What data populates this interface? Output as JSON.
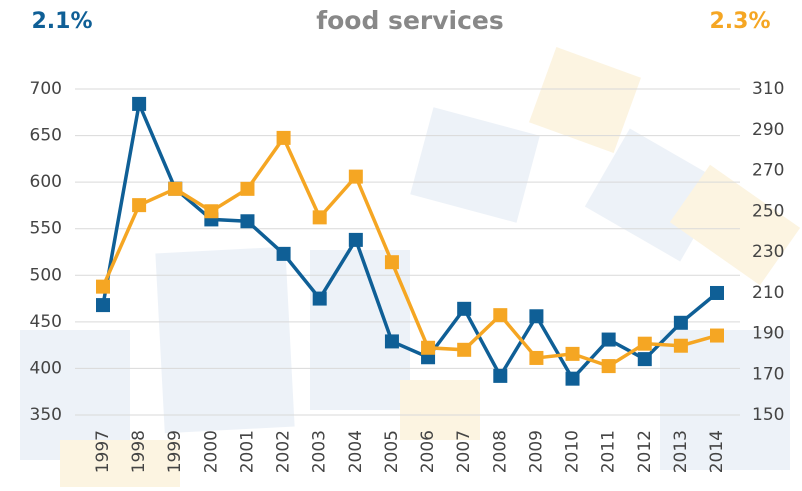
{
  "chart_data": {
    "type": "line",
    "title": "food services",
    "left_annotation": "2.1%",
    "right_annotation": "2.3%",
    "categories": [
      "1997",
      "1998",
      "1999",
      "2000",
      "2001",
      "2002",
      "2003",
      "2004",
      "2005",
      "2006",
      "2007",
      "2008",
      "2009",
      "2010",
      "2011",
      "2012",
      "2013",
      "2014"
    ],
    "series": [
      {
        "color": "#0f5f96",
        "values": [
          468,
          684,
          593,
          560,
          558,
          523,
          475,
          538,
          429,
          412,
          464,
          392,
          456,
          389,
          431,
          410,
          449,
          481
        ]
      },
      {
        "color": "#f5a623",
        "axis": "y2",
        "values": [
          213,
          253,
          261,
          250,
          261,
          286,
          247,
          267,
          225,
          183,
          182,
          199,
          178,
          180,
          174,
          185,
          184,
          189
        ]
      }
    ],
    "ylim": [
      350,
      700
    ],
    "yticks": [
      350,
      400,
      450,
      500,
      550,
      600,
      650,
      700
    ],
    "y2lim": [
      150,
      310
    ],
    "y2ticks": [
      150,
      170,
      190,
      210,
      230,
      250,
      270,
      290,
      310
    ],
    "grid": true
  }
}
